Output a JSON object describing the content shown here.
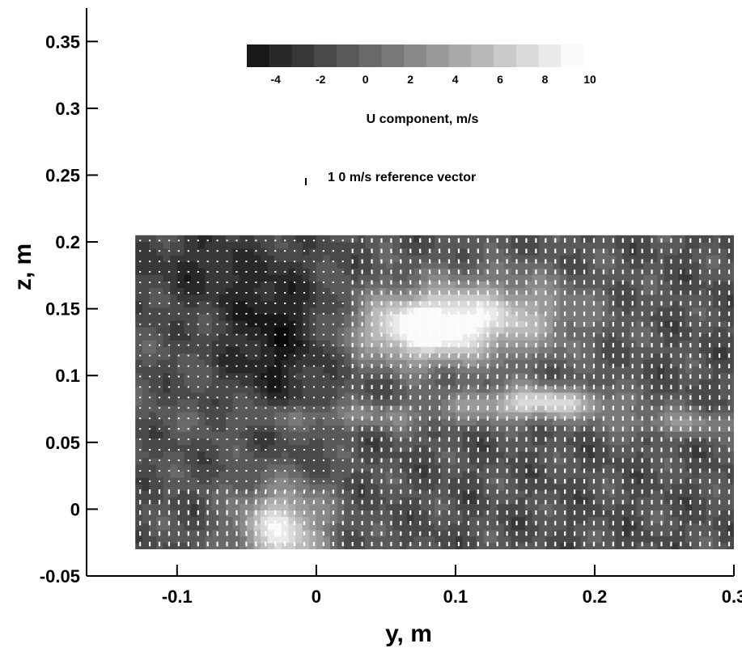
{
  "chart_data": {
    "type": "heatmap",
    "xlabel": "y, m",
    "ylabel": "z, m",
    "xlim": [
      -0.165,
      0.3
    ],
    "ylim": [
      -0.05,
      0.375
    ],
    "x_ticks": [
      -0.1,
      0,
      0.1,
      0.2,
      0.3
    ],
    "x_tick_labels": [
      "-0.1",
      "0",
      "0.1",
      "0.2",
      "0.3"
    ],
    "y_ticks": [
      -0.05,
      0,
      0.05,
      0.1,
      0.15,
      0.2,
      0.25,
      0.3,
      0.35
    ],
    "y_tick_labels": [
      "-0.05",
      "0",
      "0.05",
      "0.1",
      "0.15",
      "0.2",
      "0.25",
      "0.3",
      "0.35"
    ],
    "field_extent": {
      "y": [
        -0.13,
        0.3
      ],
      "z": [
        -0.03,
        0.205
      ]
    },
    "colorbar": {
      "title": "U component, m/s",
      "range": [
        -5,
        10
      ],
      "tick_values": [
        -4,
        -2,
        0,
        2,
        4,
        6,
        8,
        10
      ],
      "tick_labels": [
        "-4",
        "-2",
        "0",
        "2",
        "4",
        "6",
        "8",
        "10"
      ],
      "colormap": "grayscale (black = low, white = high)"
    },
    "reference_vector": {
      "label": "1 0 m/s reference vector",
      "magnitude": 10
    },
    "vortices": [
      {
        "y": 0.095,
        "z": 0.13,
        "u_peak": 9.5
      },
      {
        "y": -0.025,
        "z": -0.005,
        "u_peak": 9
      }
    ],
    "wake_bands": [
      {
        "y_start": 0.1,
        "y_end": 0.25,
        "z": 0.08,
        "u_peak": 8
      }
    ],
    "low_velocity_region": {
      "y": [
        -0.06,
        0.0
      ],
      "z": [
        0.05,
        0.2
      ],
      "u": -4
    }
  }
}
